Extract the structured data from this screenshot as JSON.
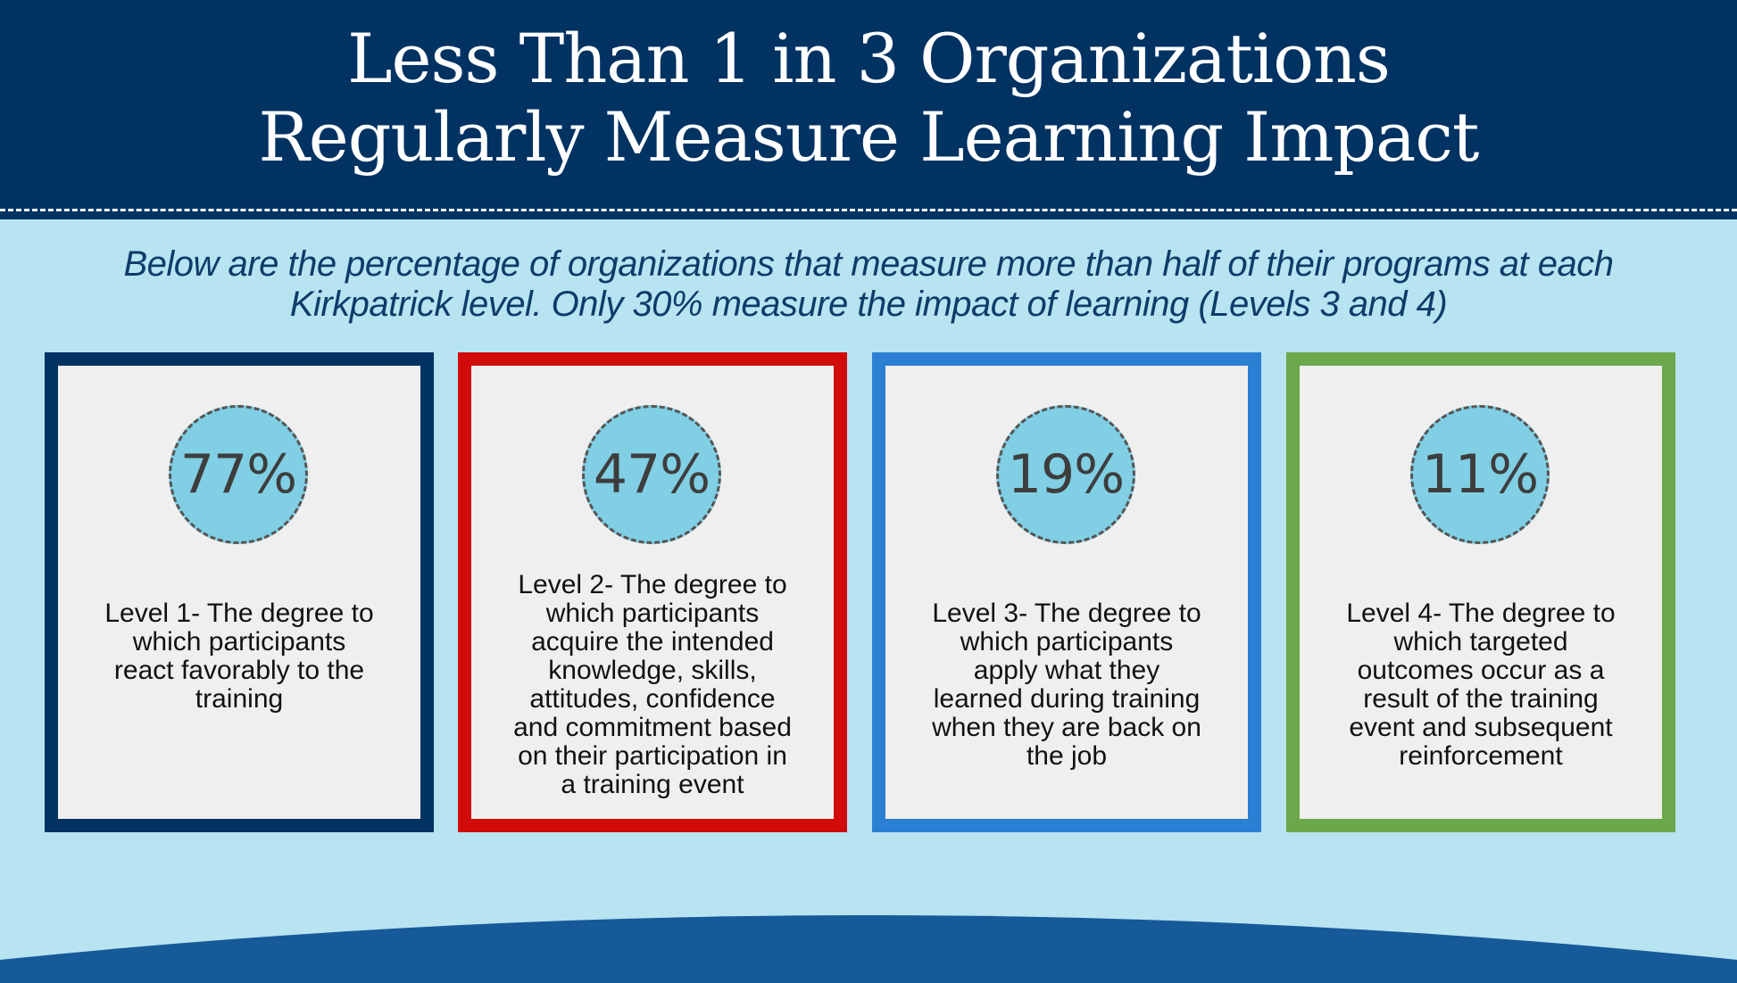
{
  "header": {
    "title_lines": [
      "Less Than 1 in 3 Organizations",
      "Regularly Measure Learning Impact"
    ],
    "background": "#003262"
  },
  "subtitle": {
    "lines": [
      "Below are the percentage of organizations that measure more than half of their programs at each",
      "Kirkpatrick level. Only 30% measure the impact of learning (Levels 3 and 4)"
    ],
    "color": "#0d3c6a"
  },
  "cards": [
    {
      "percent": "77%",
      "border_color": "#003262",
      "desc_lines": [
        "Level 1- The degree to",
        "which participants",
        "react favorably to the",
        "training"
      ]
    },
    {
      "percent": "47%",
      "border_color": "#d10a0a",
      "desc_lines": [
        "Level 2- The degree to",
        "which participants",
        "acquire the intended",
        "knowledge, skills,",
        "attitudes, confidence",
        "and commitment based",
        "on their participation in",
        "a training event"
      ]
    },
    {
      "percent": "19%",
      "border_color": "#2b80d3",
      "desc_lines": [
        "Level 3- The degree to",
        "which participants",
        "apply what they",
        "learned during training",
        "when they are back on",
        "the job"
      ]
    },
    {
      "percent": "11%",
      "border_color": "#6ba84b",
      "desc_lines": [
        "Level 4- The degree to",
        "which targeted",
        "outcomes occur as a",
        "result of the training",
        "event and subsequent",
        "reinforcement"
      ]
    }
  ],
  "colors": {
    "page_background": "#b8e3f1",
    "circle_fill": "#80cfe4",
    "card_fill": "#efefef",
    "bottom_wave": "#175a99"
  }
}
